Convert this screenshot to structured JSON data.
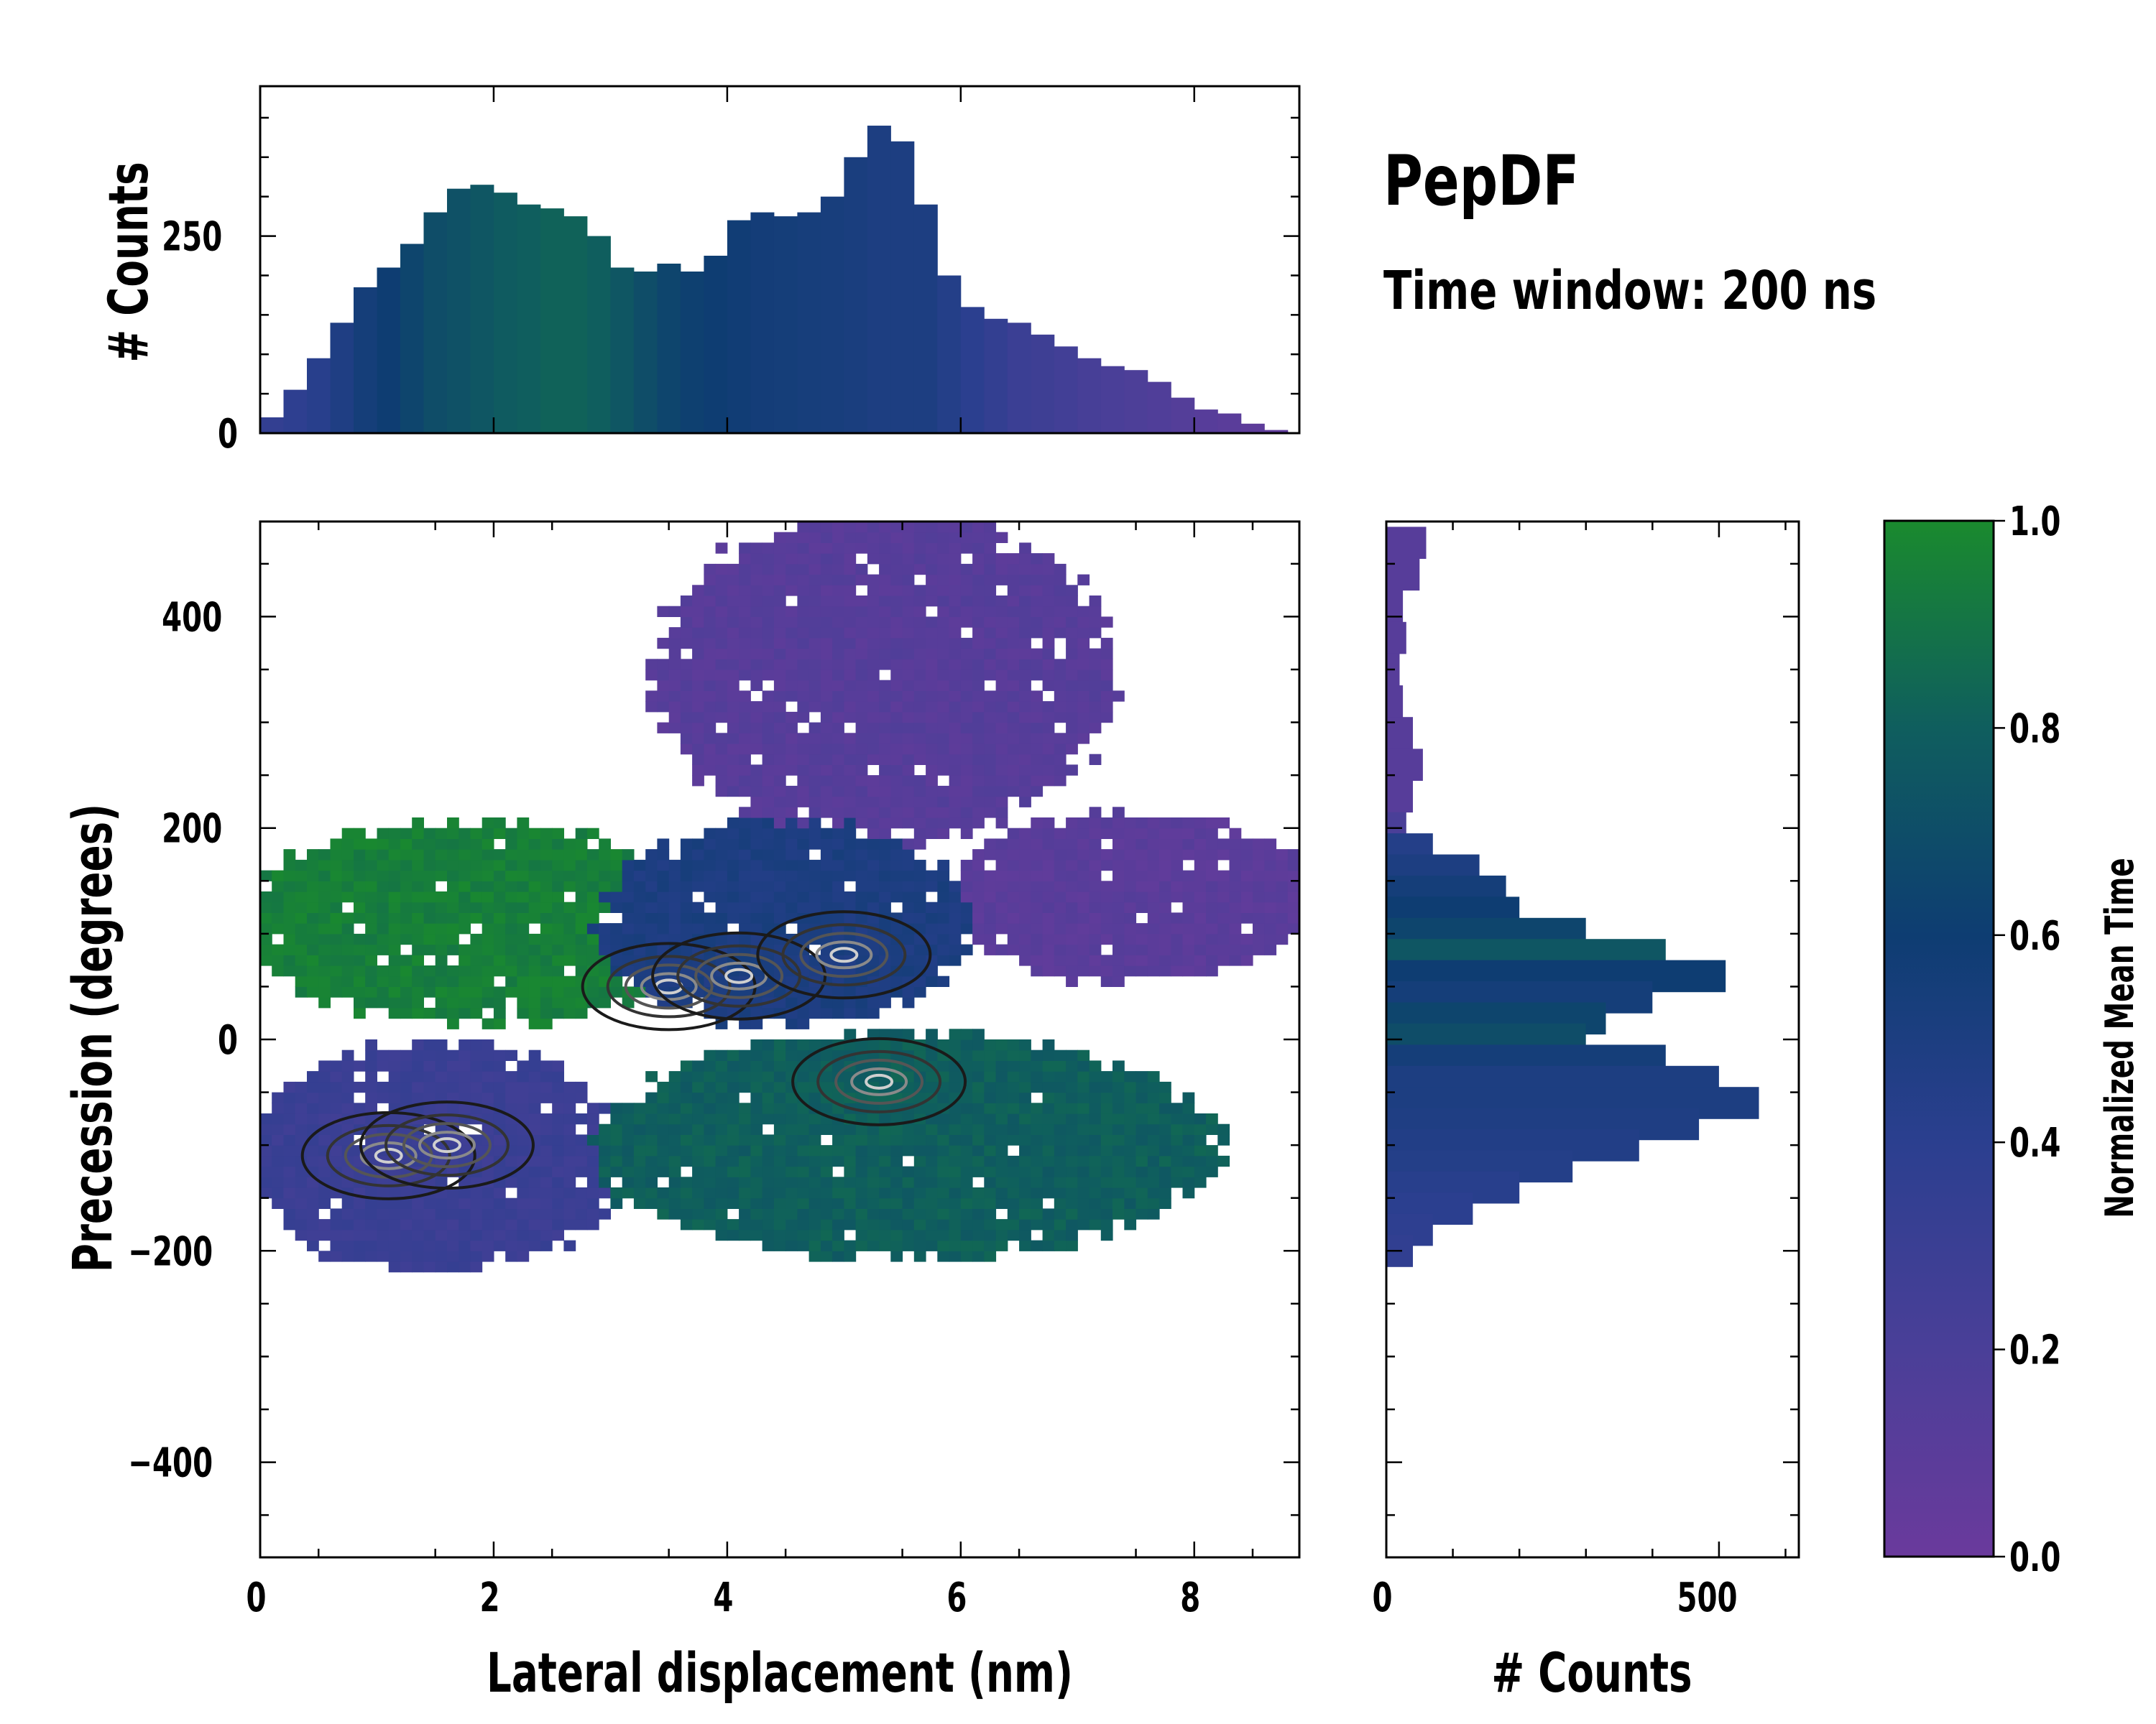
{
  "chart_data": {
    "type": "heatmap",
    "title": "PepDF",
    "subtitle": "Time window: 200 ns",
    "main": {
      "xlabel": "Lateral displacement (nm)",
      "ylabel": "Precession (degrees)",
      "xlim": [
        0,
        8.9
      ],
      "ylim": [
        -490,
        490
      ],
      "xticks": [
        "0",
        "2",
        "4",
        "6",
        "8"
      ],
      "yticks": [
        "−400",
        "−200",
        "0",
        "200",
        "400"
      ],
      "xtick_values": [
        0,
        2,
        4,
        6,
        8
      ],
      "ytick_values": [
        -400,
        -200,
        0,
        200,
        400
      ],
      "regions": [
        {
          "name": "top purple lobe",
          "x": [
            3.5,
            7.2
          ],
          "y": [
            200,
            490
          ],
          "mean_time": 0.12
        },
        {
          "name": "right purple lobe",
          "x": [
            6.0,
            8.9
          ],
          "y": [
            60,
            210
          ],
          "mean_time": 0.1
        },
        {
          "name": "upper green lobe",
          "x": [
            0.0,
            3.7
          ],
          "y": [
            20,
            200
          ],
          "mean_time": 0.95
        },
        {
          "name": "central blue band",
          "x": [
            3.0,
            6.0
          ],
          "y": [
            20,
            200
          ],
          "mean_time": 0.5
        },
        {
          "name": "lower purple lobe",
          "x": [
            0.0,
            3.0
          ],
          "y": [
            -215,
            -10
          ],
          "mean_time": 0.3
        },
        {
          "name": "lower green lobe",
          "x": [
            3.0,
            8.0
          ],
          "y": [
            -200,
            0
          ],
          "mean_time": 0.8
        }
      ],
      "density_peaks": [
        {
          "x": 1.1,
          "y": -110
        },
        {
          "x": 1.6,
          "y": -100
        },
        {
          "x": 3.5,
          "y": 50
        },
        {
          "x": 4.1,
          "y": 60
        },
        {
          "x": 5.0,
          "y": 80
        },
        {
          "x": 5.3,
          "y": -40
        }
      ]
    },
    "top_histogram": {
      "ylabel": "# Counts",
      "yticks": [
        "0",
        "250"
      ],
      "ytick_values": [
        0,
        250
      ],
      "ylim": [
        0,
        440
      ],
      "x": [
        0.1,
        0.3,
        0.5,
        0.7,
        0.9,
        1.1,
        1.3,
        1.5,
        1.7,
        1.9,
        2.1,
        2.3,
        2.5,
        2.7,
        2.9,
        3.1,
        3.3,
        3.5,
        3.7,
        3.9,
        4.1,
        4.3,
        4.5,
        4.7,
        4.9,
        5.1,
        5.3,
        5.5,
        5.7,
        5.9,
        6.1,
        6.3,
        6.5,
        6.7,
        6.9,
        7.1,
        7.3,
        7.5,
        7.7,
        7.9,
        8.1,
        8.3,
        8.5,
        8.7
      ],
      "values": [
        20,
        55,
        95,
        140,
        185,
        210,
        240,
        280,
        310,
        315,
        305,
        290,
        285,
        275,
        250,
        210,
        205,
        215,
        205,
        225,
        270,
        280,
        275,
        280,
        300,
        350,
        390,
        370,
        290,
        200,
        160,
        145,
        140,
        125,
        110,
        95,
        85,
        80,
        65,
        45,
        30,
        25,
        12,
        4
      ],
      "mean_time": [
        0.35,
        0.38,
        0.42,
        0.48,
        0.55,
        0.6,
        0.65,
        0.7,
        0.72,
        0.75,
        0.78,
        0.8,
        0.82,
        0.82,
        0.8,
        0.75,
        0.7,
        0.65,
        0.62,
        0.6,
        0.58,
        0.56,
        0.55,
        0.54,
        0.53,
        0.52,
        0.5,
        0.5,
        0.5,
        0.45,
        0.4,
        0.35,
        0.3,
        0.28,
        0.25,
        0.22,
        0.2,
        0.18,
        0.16,
        0.14,
        0.12,
        0.1,
        0.08,
        0.06
      ]
    },
    "right_histogram": {
      "xlabel": "# Counts",
      "xticks": [
        "0",
        "500"
      ],
      "xtick_values": [
        0,
        500
      ],
      "xlim": [
        0,
        620
      ],
      "y": [
        470,
        440,
        410,
        380,
        350,
        320,
        290,
        260,
        230,
        200,
        180,
        160,
        140,
        120,
        100,
        80,
        60,
        40,
        20,
        0,
        -20,
        -40,
        -60,
        -80,
        -100,
        -120,
        -140,
        -160,
        -180,
        -200
      ],
      "values": [
        60,
        50,
        25,
        30,
        20,
        25,
        40,
        55,
        40,
        30,
        70,
        140,
        180,
        200,
        300,
        420,
        510,
        400,
        330,
        300,
        420,
        500,
        560,
        470,
        380,
        280,
        200,
        130,
        70,
        40
      ],
      "mean_time": [
        0.12,
        0.12,
        0.12,
        0.12,
        0.12,
        0.12,
        0.12,
        0.12,
        0.12,
        0.2,
        0.45,
        0.5,
        0.55,
        0.6,
        0.65,
        0.75,
        0.6,
        0.55,
        0.65,
        0.7,
        0.55,
        0.5,
        0.5,
        0.48,
        0.46,
        0.45,
        0.42,
        0.4,
        0.38,
        0.36
      ]
    },
    "colorbar": {
      "label": "Normalized Mean Time",
      "ticks": [
        "0.0",
        "0.2",
        "0.4",
        "0.6",
        "0.8",
        "1.0"
      ],
      "tick_values": [
        0,
        0.2,
        0.4,
        0.6,
        0.8,
        1.0
      ],
      "colors": [
        "#6a3a9c",
        "#4a3f98",
        "#2b3f8f",
        "#0e3d72",
        "#0f5e5e",
        "#1a8a2e"
      ]
    }
  }
}
